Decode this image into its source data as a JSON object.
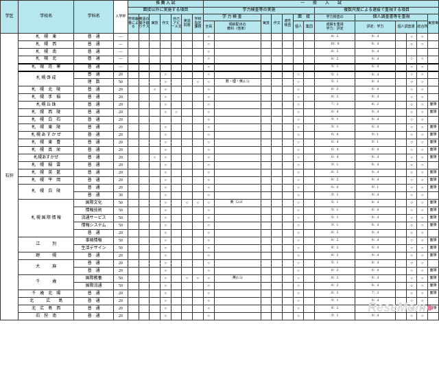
{
  "colors": {
    "header_bg": "#b7e7ee",
    "border": "#333333",
    "text": "#222222",
    "watermark_gray": "#d9dbdd",
    "watermark_pink": "#f07c9d"
  },
  "header": {
    "gakku": "学区",
    "school": "学校名",
    "dept": "学科名",
    "nyugaku": "入学枠",
    "suisen": "推 薦 入 試",
    "suisen_sub": "面接以外に実施する項目",
    "ippan": "一　　般　　入　　試",
    "ippan_sub1": "学力検査等の実施",
    "ippan_sub2": "複数尺度による選抜で重視する項目",
    "gakuryoku": "学 力 検 査",
    "tilt": "傾斜配点の\n教科（倍率）",
    "zenin": "全員",
    "mensetsu": "面　接",
    "mensetsu_kojin": "個人",
    "mensetsu_shudan": "集団",
    "gakusa": "学力検査の",
    "seiseki_juushi": "成績を重視",
    "gakuryoku_hyotei": "学力：評定",
    "kojin_sho": "個人調査書等を重視",
    "kojin_sho2": "評定：学力",
    "kojin_chousa": "個人調査書",
    "tokubetsu": "特別活動の記録",
    "sogo": "総合所見等",
    "jitsugi": "実技等",
    "jissugi_s": "実技",
    "sakubun": "作文",
    "jiko": "自己\nアピ\nール文",
    "eigo_kiki": "英語の\n聞き取\nりテスト",
    "eigo_mon": "英語\n問答",
    "gakkou_shitei": "学校\n指定\n項目",
    "kadai": "課題",
    "jitsuwaza": "実技",
    "sakubun2": "作文"
  },
  "gakku_label": "石狩",
  "rows": [
    {
      "school": "札　幌　東",
      "dept": "普　通",
      "num": "―",
      "marks": [
        "",
        "",
        "",
        "",
        "",
        "",
        "",
        "○",
        "",
        "",
        "",
        "",
        "",
        "",
        "8：2",
        "6：4",
        "",
        "○",
        "○",
        ""
      ]
    },
    {
      "school": "札　幌　西",
      "dept": "普　通",
      "num": "―",
      "marks": [
        "",
        "",
        "",
        "",
        "",
        "",
        "",
        "○",
        "",
        "",
        "",
        "",
        "",
        "",
        "10：0",
        "6：4",
        "",
        "○",
        "○",
        ""
      ]
    },
    {
      "school": "札　幌　南",
      "dept": "普　通",
      "num": "―",
      "marks": [
        "",
        "",
        "",
        "",
        "",
        "",
        "",
        "○",
        "",
        "",
        "",
        "",
        "",
        "",
        "8：2",
        "6：4",
        "",
        "",
        "",
        ""
      ]
    },
    {
      "school": "札　幌　北",
      "dept": "普　通",
      "num": "―",
      "marks": [
        "",
        "",
        "",
        "",
        "",
        "",
        "",
        "○",
        "",
        "",
        "",
        "",
        "",
        "",
        "8：2",
        "6：4",
        "",
        "○",
        "○",
        ""
      ],
      "thick": true
    },
    {
      "school": "札　幌　月　寒",
      "dept": "普　通",
      "num": "―",
      "marks": [
        "",
        "",
        "",
        "",
        "",
        "",
        "",
        "○",
        "",
        "",
        "",
        "",
        "",
        "",
        "9：1",
        "6：4",
        "",
        "○",
        "○",
        ""
      ],
      "thick": true
    },
    {
      "school": "札 幌 啓 成",
      "dept": "普　通",
      "num": "20",
      "marks": [
        "",
        "",
        "",
        "○",
        "",
        "",
        "",
        "○",
        "",
        "",
        "",
        "",
        "○",
        "",
        "9：1",
        "6：4",
        "",
        "○",
        "○",
        ""
      ]
    },
    {
      "school": "",
      "dept": "理　数",
      "num": "50",
      "marks": [
        "",
        "",
        "",
        "○",
        "",
        "",
        "○",
        "○",
        "数・理・英(1.5)",
        "",
        "",
        "",
        "○",
        "",
        "9：1",
        "6：4",
        "",
        "○",
        "○",
        ""
      ]
    },
    {
      "school": "札　幌　北　陵",
      "dept": "普　通",
      "num": "20",
      "marks": [
        "",
        "",
        "○",
        "○",
        "",
        "",
        "",
        "○",
        "",
        "",
        "",
        "",
        "○",
        "",
        "8：2",
        "6：4",
        "",
        "○",
        "○",
        ""
      ]
    },
    {
      "school": "札　幌　手　稲",
      "dept": "普　通",
      "num": "20",
      "marks": [
        "",
        "",
        "",
        "○",
        "",
        "",
        "",
        "○",
        "",
        "",
        "",
        "",
        "○",
        "",
        "8：2",
        "6：4",
        "",
        "○",
        "○",
        ""
      ]
    },
    {
      "school": "札 幌 丘 珠",
      "dept": "普　通",
      "num": "20",
      "marks": [
        "",
        "",
        "",
        "○",
        "",
        "",
        "",
        "○",
        "",
        "",
        "",
        "",
        "○",
        "",
        "7：3",
        "8：2",
        "",
        "○",
        "○",
        "面接"
      ]
    },
    {
      "school": "札　幌　西　陵",
      "dept": "普　通",
      "num": "20",
      "marks": [
        "",
        "",
        "",
        "○",
        "○",
        "",
        "",
        "○",
        "",
        "",
        "",
        "",
        "○",
        "",
        "6：4",
        "6：4",
        "",
        "○",
        "○",
        "面接"
      ]
    },
    {
      "school": "札　幌　白　石",
      "dept": "普　通",
      "num": "20",
      "marks": [
        "",
        "",
        "",
        "",
        "",
        "",
        "",
        "○",
        "",
        "",
        "",
        "",
        "○",
        "",
        "9：1",
        "6：4",
        "",
        "○",
        "○",
        ""
      ]
    },
    {
      "school": "札　幌　東　陵",
      "dept": "普　通",
      "num": "20",
      "marks": [
        "",
        "",
        "",
        "○",
        "",
        "",
        "",
        "○",
        "",
        "",
        "",
        "",
        "○",
        "",
        "9：1",
        "6：4",
        "",
        "○",
        "○",
        "面接"
      ]
    },
    {
      "school": "札 幌 あ す か ぜ",
      "dept": "普　通",
      "num": "20",
      "marks": [
        "",
        "",
        "",
        "○",
        "",
        "",
        "",
        "○",
        "",
        "",
        "",
        "",
        "○",
        "",
        "6：4",
        "9：1",
        "",
        "○",
        "○",
        "面接"
      ]
    },
    {
      "school": "札　幌　東　豊",
      "dept": "普　通",
      "num": "20",
      "marks": [
        "",
        "",
        "",
        "○",
        "",
        "",
        "",
        "○",
        "",
        "",
        "",
        "",
        "○",
        "",
        "6：4",
        "9：1",
        "",
        "○",
        "○",
        "面接"
      ]
    },
    {
      "school": "札　幌　真　栄",
      "dept": "普　通",
      "num": "20",
      "marks": [
        "",
        "",
        "",
        "○",
        "",
        "",
        "",
        "○",
        "",
        "",
        "",
        "",
        "○",
        "",
        "6：4",
        "6：4",
        "",
        "○",
        "○",
        "面接"
      ]
    },
    {
      "school": "札幌あすかぜ",
      "dept": "普　通",
      "num": "20",
      "marks": [
        "",
        "",
        "○",
        "○",
        "",
        "",
        "",
        "○",
        "",
        "",
        "",
        "",
        "○",
        "",
        "6：4",
        "6：4",
        "",
        "○",
        "○",
        "面接"
      ]
    },
    {
      "school": "札　幌　稲　雲",
      "dept": "普　通",
      "num": "20",
      "marks": [
        "",
        "",
        "",
        "○",
        "",
        "",
        "",
        "○",
        "",
        "",
        "",
        "",
        "○",
        "",
        "9：1",
        "6：4",
        "",
        "○",
        "○",
        ""
      ]
    },
    {
      "school": "札　幌　英　藍",
      "dept": "普　通",
      "num": "20",
      "marks": [
        "",
        "",
        "",
        "○",
        "",
        "",
        "",
        "○",
        "",
        "",
        "",
        "",
        "○",
        "",
        "8：2",
        "6：4",
        "",
        "○",
        "○",
        "面接"
      ]
    },
    {
      "school": "札　幌　平　岡",
      "dept": "普　通",
      "num": "20",
      "marks": [
        "",
        "",
        "",
        "○",
        "",
        "",
        "",
        "○",
        "",
        "",
        "",
        "",
        "○",
        "",
        "8：2",
        "6：4",
        "",
        "○",
        "○",
        "面接"
      ]
    },
    {
      "school": "札　幌　白　陵",
      "dept": "普　通",
      "num": "20",
      "marks": [
        "",
        "",
        "",
        "○",
        "",
        "",
        "",
        "○",
        "",
        "",
        "",
        "",
        "○",
        "",
        "6：4",
        "9：1",
        "",
        "○",
        "○",
        "面接"
      ]
    },
    {
      "school": "",
      "dept": "普　通",
      "num": "30",
      "marks": [
        "",
        "",
        "",
        "○",
        "",
        "",
        "",
        "○",
        "",
        "",
        "",
        "",
        "○",
        "",
        "9：1",
        "6：4",
        "",
        "○",
        "○",
        ""
      ]
    },
    {
      "school": "札 幌 国 際 情 報",
      "dept": "国際文化",
      "num": "50",
      "marks": [
        "",
        "",
        "",
        "○",
        "",
        "○",
        "○",
        "○",
        "英（2.0）",
        "",
        "",
        "",
        "○",
        "",
        "9：1",
        "6：4",
        "",
        "○",
        "○",
        "面接"
      ]
    },
    {
      "school": "",
      "dept": "情報技術",
      "num": "50",
      "marks": [
        "",
        "",
        "",
        "○",
        "",
        "",
        "",
        "○",
        "",
        "",
        "",
        "",
        "○",
        "",
        "9：1",
        "6：4",
        "",
        "○",
        "○",
        "面接"
      ]
    },
    {
      "school": "",
      "dept": "流通サービス",
      "num": "50",
      "marks": [
        "",
        "",
        "",
        "○",
        "",
        "",
        "",
        "○",
        "",
        "",
        "",
        "",
        "○",
        "",
        "9：1",
        "6：4",
        "",
        "○",
        "○",
        "面接"
      ]
    },
    {
      "school": "",
      "dept": "情報システム",
      "num": "50",
      "marks": [
        "",
        "",
        "",
        "○",
        "",
        "",
        "",
        "○",
        "",
        "",
        "",
        "",
        "○",
        "",
        "9：1",
        "6：4",
        "",
        "○",
        "○",
        "面接"
      ]
    },
    {
      "school": "",
      "dept": "普　通",
      "num": "20",
      "marks": [
        "",
        "",
        "",
        "○",
        "",
        "",
        "",
        "○",
        "",
        "",
        "",
        "",
        "○",
        "",
        "8：2",
        "6：4",
        "",
        "○",
        "○",
        ""
      ]
    },
    {
      "school": "江　　　別",
      "dept": "事務情報",
      "num": "50",
      "marks": [
        "",
        "",
        "",
        "○",
        "",
        "",
        "",
        "○",
        "",
        "",
        "",
        "",
        "○",
        "",
        "8：2",
        "6：4",
        "",
        "○",
        "○",
        "面接"
      ]
    },
    {
      "school": "",
      "dept": "生活デザイン",
      "num": "50",
      "marks": [
        "",
        "",
        "",
        "○",
        "",
        "",
        "",
        "○",
        "",
        "",
        "",
        "",
        "○",
        "",
        "8：2",
        "6：4",
        "",
        "○",
        "○",
        "面接"
      ]
    },
    {
      "school": "野　　　幌",
      "dept": "普　通",
      "num": "20",
      "marks": [
        "",
        "",
        "",
        "○",
        "",
        "",
        "",
        "○",
        "",
        "",
        "",
        "",
        "○",
        "",
        "8：2",
        "6：4",
        "",
        "○",
        "○",
        "面接"
      ]
    },
    {
      "school": "大　　　麻",
      "dept": "普　通",
      "num": "20",
      "marks": [
        "",
        "",
        "",
        "○",
        "",
        "",
        "",
        "○",
        "",
        "",
        "",
        "",
        "○",
        "",
        "9：1",
        "6：4",
        "",
        "○",
        "○",
        ""
      ]
    },
    {
      "school": "",
      "dept": "普　通",
      "num": "20",
      "marks": [
        "",
        "",
        "",
        "○",
        "",
        "",
        "",
        "○",
        "",
        "",
        "",
        "",
        "○",
        "",
        "8：2",
        "6：4",
        "",
        "○",
        "○",
        "面接"
      ]
    },
    {
      "school": "千　　　歳",
      "dept": "国際教養",
      "num": "50",
      "marks": [
        "",
        "",
        "",
        "○",
        "",
        "○",
        "○",
        "○",
        "英(1.5)",
        "",
        "",
        "",
        "○",
        "",
        "8：2",
        "6：4",
        "",
        "○",
        "○",
        "面接"
      ]
    },
    {
      "school": "",
      "dept": "国際流通",
      "num": "50",
      "marks": [
        "",
        "",
        "",
        "○",
        "",
        "",
        "",
        "○",
        "",
        "",
        "",
        "",
        "○",
        "",
        "8：2",
        "6：4",
        "",
        "○",
        "○",
        "面接"
      ]
    },
    {
      "school": "千　歳　北　陽",
      "dept": "普　通",
      "num": "20",
      "marks": [
        "",
        "",
        "",
        "○",
        "",
        "",
        "",
        "○",
        "",
        "",
        "",
        "",
        "○",
        "",
        "8：2",
        "7：3",
        "",
        "○",
        "○",
        "面接"
      ]
    },
    {
      "school": "北　　　広　　島",
      "dept": "普　通",
      "num": "20",
      "marks": [
        "",
        "",
        "",
        "○",
        "",
        "",
        "",
        "○",
        "",
        "",
        "",
        "",
        "○",
        "",
        "9：1",
        "6：4",
        "",
        "○",
        "○",
        ""
      ]
    },
    {
      "school": "北　広　島　西",
      "dept": "普　通",
      "num": "20",
      "marks": [
        "",
        "",
        "",
        "○",
        "",
        "",
        "",
        "○",
        "",
        "",
        "",
        "",
        "○",
        "",
        "8：2",
        "6：4",
        "",
        "○",
        "○",
        "面接"
      ]
    },
    {
      "school": "石　狩　南",
      "dept": "普　通",
      "num": "20",
      "marks": [
        "",
        "",
        "",
        "○",
        "",
        "",
        "",
        "○",
        "",
        "",
        "",
        "",
        "○",
        "",
        "9：1",
        "6：4",
        "",
        "○",
        "○",
        ""
      ]
    }
  ],
  "watermark": {
    "brand": "ReseMom",
    "dot": "●"
  }
}
